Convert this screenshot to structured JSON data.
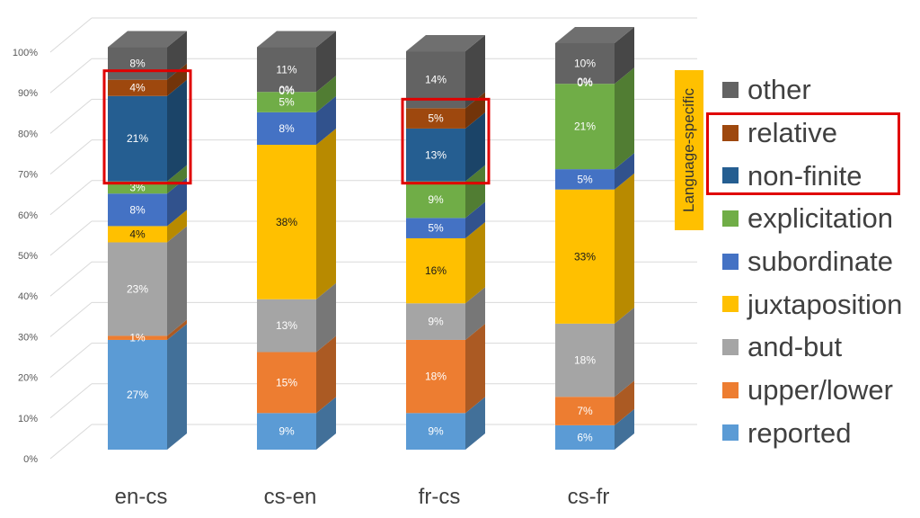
{
  "chart_data": {
    "type": "bar",
    "stacked": true,
    "three_d": true,
    "categories": [
      "en-cs",
      "cs-en",
      "fr-cs",
      "cs-fr"
    ],
    "ylim": [
      0,
      100
    ],
    "y_ticks": [
      "0%",
      "10%",
      "20%",
      "30%",
      "40%",
      "50%",
      "60%",
      "70%",
      "80%",
      "90%",
      "100%"
    ],
    "grid": true,
    "legend_position": "right",
    "series": [
      {
        "name": "reported",
        "color": "#5b9bd5",
        "values": [
          27,
          9,
          9,
          6
        ],
        "labels": [
          "27%",
          "9%",
          "9%",
          "6%"
        ]
      },
      {
        "name": "upper/lower",
        "color": "#ed7d31",
        "values": [
          1,
          15,
          18,
          7
        ],
        "labels": [
          "1%",
          "15%",
          "18%",
          "7%"
        ]
      },
      {
        "name": "and-but",
        "color": "#a5a5a5",
        "values": [
          23,
          13,
          9,
          18
        ],
        "labels": [
          "23%",
          "13%",
          "9%",
          "18%"
        ]
      },
      {
        "name": "juxtaposition",
        "color": "#ffc000",
        "values": [
          4,
          38,
          16,
          33
        ],
        "labels": [
          "4%",
          "38%",
          "16%",
          "33%"
        ]
      },
      {
        "name": "subordinate",
        "color": "#4472c4",
        "values": [
          8,
          8,
          5,
          5
        ],
        "labels": [
          "8%",
          "8%",
          "5%",
          "5%"
        ]
      },
      {
        "name": "explicitation",
        "color": "#70ad47",
        "values": [
          3,
          5,
          9,
          21
        ],
        "labels": [
          "3%",
          "5%",
          "9%",
          "21%"
        ]
      },
      {
        "name": "non-finite",
        "color": "#255e91",
        "values": [
          21,
          0,
          13,
          0
        ],
        "labels": [
          "21%",
          "0%",
          "13%",
          "0%"
        ]
      },
      {
        "name": "relative",
        "color": "#9e480e",
        "values": [
          4,
          0,
          5,
          0
        ],
        "labels": [
          "4%",
          "0%",
          "5%",
          "0%"
        ]
      },
      {
        "name": "other",
        "color": "#636363",
        "values": [
          8,
          11,
          14,
          10
        ],
        "labels": [
          "8%",
          "11%",
          "14%",
          "10%"
        ]
      }
    ],
    "annotations": {
      "language_specific_label": "Language-specific",
      "highlighted_series": [
        "relative",
        "non-finite"
      ],
      "highlighted_categories": [
        "en-cs",
        "fr-cs"
      ]
    }
  }
}
